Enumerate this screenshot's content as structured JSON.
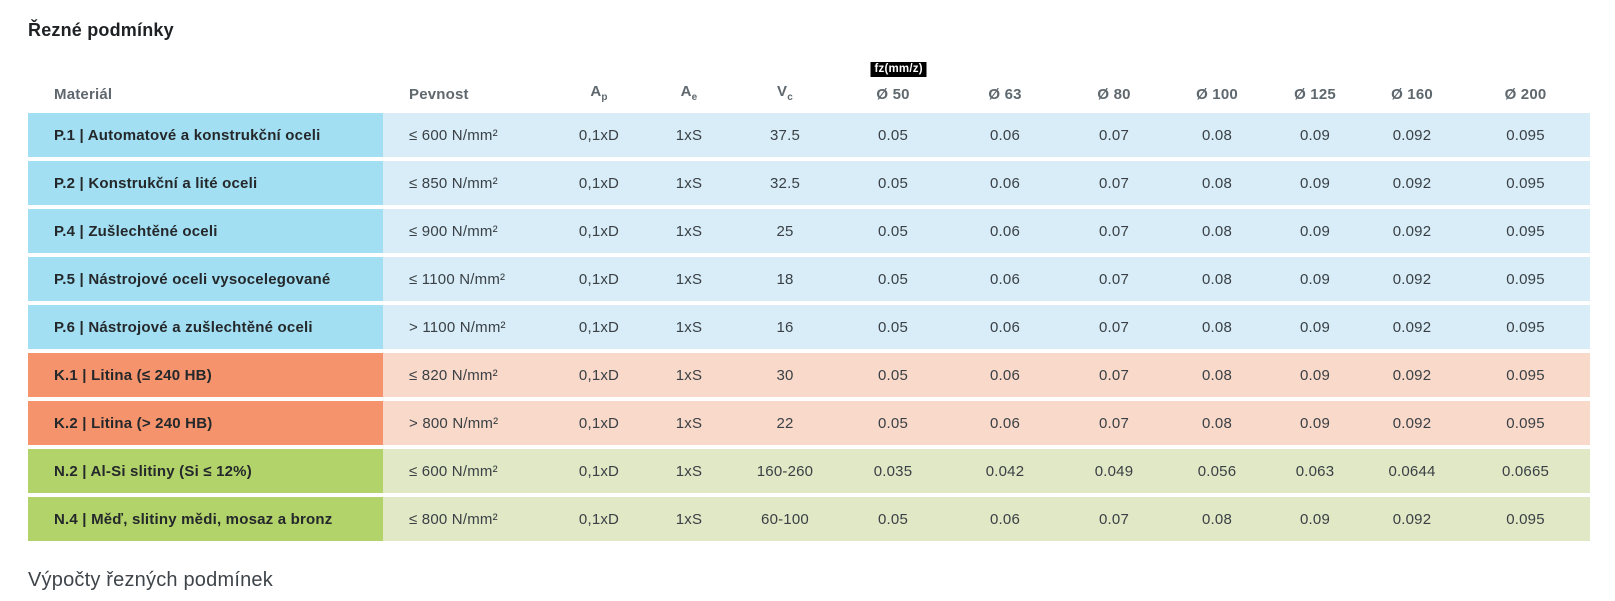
{
  "page": {
    "title": "Řezné podmínky",
    "footer_heading": "Výpočty řezných podmínek"
  },
  "colors": {
    "p_strong": "#a2dff2",
    "p_light": "#d8edf8",
    "k_strong": "#f5936c",
    "k_light": "#f9d9c9",
    "n_strong": "#b2d26a",
    "n_light": "#e0e8c5",
    "badge_bg": "#000000",
    "badge_text": "#ffffff"
  },
  "table": {
    "headers": {
      "material": "Materiál",
      "pevnost": "Pevnost",
      "ap": {
        "base": "A",
        "sub": "p"
      },
      "ae": {
        "base": "A",
        "sub": "e"
      },
      "vc": {
        "base": "V",
        "sub": "c"
      },
      "fz_badge": "fz(mm/z)",
      "diameters": [
        "Ø 50",
        "Ø 63",
        "Ø 80",
        "Ø 100",
        "Ø 125",
        "Ø 160",
        "Ø 200"
      ]
    },
    "rows": [
      {
        "group": "p",
        "material": "P.1 | Automatové a konstrukční oceli",
        "pevnost": "≤ 600 N/mm²",
        "ap": "0,1xD",
        "ae": "1xS",
        "vc": "37.5",
        "fz": [
          "0.05",
          "0.06",
          "0.07",
          "0.08",
          "0.09",
          "0.092",
          "0.095"
        ]
      },
      {
        "group": "p",
        "material": "P.2 | Konstrukční a lité oceli",
        "pevnost": "≤ 850 N/mm²",
        "ap": "0,1xD",
        "ae": "1xS",
        "vc": "32.5",
        "fz": [
          "0.05",
          "0.06",
          "0.07",
          "0.08",
          "0.09",
          "0.092",
          "0.095"
        ]
      },
      {
        "group": "p",
        "material": "P.4 | Zušlechtěné oceli",
        "pevnost": "≤ 900 N/mm²",
        "ap": "0,1xD",
        "ae": "1xS",
        "vc": "25",
        "fz": [
          "0.05",
          "0.06",
          "0.07",
          "0.08",
          "0.09",
          "0.092",
          "0.095"
        ]
      },
      {
        "group": "p",
        "material": "P.5 | Nástrojové oceli vysocelegované",
        "pevnost": "≤ 1100 N/mm²",
        "ap": "0,1xD",
        "ae": "1xS",
        "vc": "18",
        "fz": [
          "0.05",
          "0.06",
          "0.07",
          "0.08",
          "0.09",
          "0.092",
          "0.095"
        ]
      },
      {
        "group": "p",
        "material": "P.6 | Nástrojové a zušlechtěné oceli",
        "pevnost": "> 1100 N/mm²",
        "ap": "0,1xD",
        "ae": "1xS",
        "vc": "16",
        "fz": [
          "0.05",
          "0.06",
          "0.07",
          "0.08",
          "0.09",
          "0.092",
          "0.095"
        ]
      },
      {
        "group": "k",
        "material": "K.1 | Litina (≤ 240 HB)",
        "pevnost": "≤ 820 N/mm²",
        "ap": "0,1xD",
        "ae": "1xS",
        "vc": "30",
        "fz": [
          "0.05",
          "0.06",
          "0.07",
          "0.08",
          "0.09",
          "0.092",
          "0.095"
        ]
      },
      {
        "group": "k",
        "material": "K.2 | Litina (> 240 HB)",
        "pevnost": "> 800 N/mm²",
        "ap": "0,1xD",
        "ae": "1xS",
        "vc": "22",
        "fz": [
          "0.05",
          "0.06",
          "0.07",
          "0.08",
          "0.09",
          "0.092",
          "0.095"
        ]
      },
      {
        "group": "n",
        "material": "N.2 | Al-Si slitiny (Si ≤ 12%)",
        "pevnost": "≤ 600 N/mm²",
        "ap": "0,1xD",
        "ae": "1xS",
        "vc": "160-260",
        "fz": [
          "0.035",
          "0.042",
          "0.049",
          "0.056",
          "0.063",
          "0.0644",
          "0.0665"
        ]
      },
      {
        "group": "n",
        "material": "N.4 | Měď, slitiny mědi, mosaz a bronz",
        "pevnost": "≤ 800 N/mm²",
        "ap": "0,1xD",
        "ae": "1xS",
        "vc": "60-100",
        "fz": [
          "0.05",
          "0.06",
          "0.07",
          "0.08",
          "0.09",
          "0.092",
          "0.095"
        ]
      }
    ]
  }
}
